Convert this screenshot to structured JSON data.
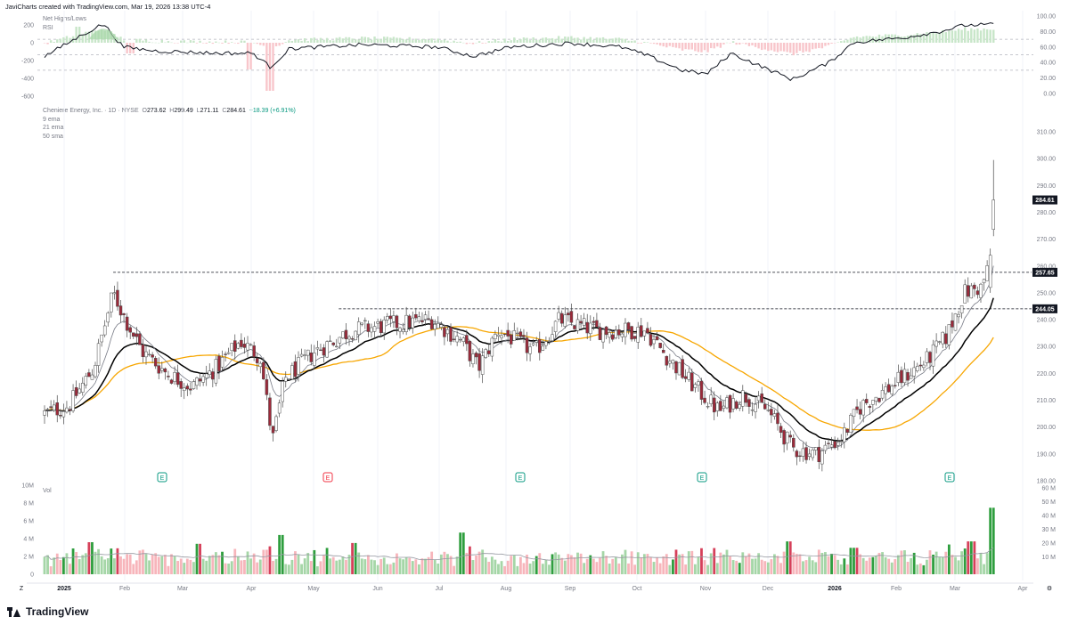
{
  "header": {
    "attribution": "JaviCharts created with TradingView.com, Mar 19, 2026 13:38 UTC-4"
  },
  "footer": {
    "brand": "TradingView"
  },
  "legend_top": {
    "line1": "Net Highs/Lows",
    "line2": "RSI"
  },
  "legend_main": {
    "symbol": "Cheniere Energy, Inc. · 1D · NYSE",
    "o_label": "O",
    "o": "273.62",
    "h_label": "H",
    "h": "299.49",
    "l_label": "L",
    "l": "271.11",
    "c_label": "C",
    "c": "284.61",
    "change": "+18.39 (+6.91%)",
    "ma1": "9 ema",
    "ma2": "21 ema",
    "ma3": "50 sma"
  },
  "legend_vol": {
    "label": "Vol"
  },
  "colors": {
    "up": "#089981",
    "down": "#f23645",
    "candle_up_fill": "#ffffff",
    "candle_down_fill": "#9c2a3a",
    "ema9": "#787b86",
    "ema21": "#000000",
    "sma50": "#f7a600",
    "vol_up": "#a5d6a7",
    "vol_down": "#f7b5bb",
    "vol_up_strong": "#2e9e3e",
    "vol_down_strong": "#d6405a",
    "rsi_line": "#131722"
  },
  "chart_data": [
    {
      "type": "candlestick",
      "name": "Cheniere Energy, Inc. · 1D · NYSE",
      "ylim": [
        180,
        310
      ],
      "y_ticks": [
        "310.00",
        "300.00",
        "290.00",
        "280.00",
        "270.00",
        "260.00",
        "250.00",
        "240.00",
        "230.00",
        "220.00",
        "210.00",
        "200.00",
        "190.00",
        "180.00"
      ],
      "price_labels": [
        {
          "value": 284.61,
          "text": "284.61"
        },
        {
          "value": 257.65,
          "text": "257.65"
        },
        {
          "value": 244.05,
          "text": "244.05"
        }
      ],
      "x_ticks": [
        "2025",
        "Feb",
        "Mar",
        "Apr",
        "May",
        "Jun",
        "Jul",
        "Aug",
        "Sep",
        "Oct",
        "Nov",
        "Dec",
        "2026",
        "Feb",
        "Mar",
        "Apr"
      ],
      "earnings_markers": [
        "E",
        "E",
        "E",
        "E",
        "E"
      ],
      "earnings_kind": [
        "up",
        "down",
        "up",
        "up",
        "up"
      ],
      "anchor_points": [
        {
          "d": 0,
          "p": 205
        },
        {
          "d": 10,
          "p": 208
        },
        {
          "d": 20,
          "p": 222
        },
        {
          "d": 28,
          "p": 250
        },
        {
          "d": 33,
          "p": 240
        },
        {
          "d": 40,
          "p": 228
        },
        {
          "d": 50,
          "p": 220
        },
        {
          "d": 60,
          "p": 215
        },
        {
          "d": 70,
          "p": 222
        },
        {
          "d": 80,
          "p": 232
        },
        {
          "d": 88,
          "p": 226
        },
        {
          "d": 93,
          "p": 195
        },
        {
          "d": 98,
          "p": 218
        },
        {
          "d": 110,
          "p": 228
        },
        {
          "d": 125,
          "p": 236
        },
        {
          "d": 140,
          "p": 238
        },
        {
          "d": 158,
          "p": 240
        },
        {
          "d": 170,
          "p": 232
        },
        {
          "d": 177,
          "p": 222
        },
        {
          "d": 185,
          "p": 236
        },
        {
          "d": 200,
          "p": 228
        },
        {
          "d": 210,
          "p": 240
        },
        {
          "d": 225,
          "p": 236
        },
        {
          "d": 245,
          "p": 236
        },
        {
          "d": 255,
          "p": 225
        },
        {
          "d": 265,
          "p": 215
        },
        {
          "d": 275,
          "p": 206
        },
        {
          "d": 285,
          "p": 212
        },
        {
          "d": 295,
          "p": 206
        },
        {
          "d": 305,
          "p": 192
        },
        {
          "d": 315,
          "p": 190
        },
        {
          "d": 325,
          "p": 196
        },
        {
          "d": 333,
          "p": 208
        },
        {
          "d": 345,
          "p": 215
        },
        {
          "d": 360,
          "p": 225
        },
        {
          "d": 368,
          "p": 234
        },
        {
          "d": 375,
          "p": 250
        },
        {
          "d": 382,
          "p": 252
        },
        {
          "d": 386,
          "p": 262
        },
        {
          "d": 387,
          "p": 284.6
        }
      ],
      "last_bar": {
        "o": 273.62,
        "h": 299.49,
        "l": 271.11,
        "c": 284.61
      },
      "resistance_lines": [
        {
          "value": 257.65,
          "from": "Jan 2025",
          "to": "Mar 2026"
        },
        {
          "value": 244.05,
          "from": "May 2025",
          "to": "Mar 2026"
        }
      ]
    },
    {
      "type": "line",
      "name": "RSI",
      "ylim": [
        0,
        100
      ],
      "y_ticks": [
        "100.00",
        "80.00",
        "60.00",
        "40.00",
        "20.00",
        "0.00"
      ],
      "levels": [
        70,
        50,
        30
      ],
      "anchor_points": [
        {
          "d": 0,
          "p": 48
        },
        {
          "d": 15,
          "p": 75
        },
        {
          "d": 24,
          "p": 90
        },
        {
          "d": 32,
          "p": 60
        },
        {
          "d": 45,
          "p": 55
        },
        {
          "d": 70,
          "p": 52
        },
        {
          "d": 85,
          "p": 52
        },
        {
          "d": 92,
          "p": 34
        },
        {
          "d": 100,
          "p": 58
        },
        {
          "d": 130,
          "p": 63
        },
        {
          "d": 160,
          "p": 60
        },
        {
          "d": 175,
          "p": 48
        },
        {
          "d": 190,
          "p": 60
        },
        {
          "d": 215,
          "p": 65
        },
        {
          "d": 235,
          "p": 60
        },
        {
          "d": 245,
          "p": 50
        },
        {
          "d": 260,
          "p": 30
        },
        {
          "d": 270,
          "p": 25
        },
        {
          "d": 280,
          "p": 52
        },
        {
          "d": 290,
          "p": 38
        },
        {
          "d": 305,
          "p": 18
        },
        {
          "d": 320,
          "p": 40
        },
        {
          "d": 330,
          "p": 66
        },
        {
          "d": 350,
          "p": 72
        },
        {
          "d": 365,
          "p": 80
        },
        {
          "d": 375,
          "p": 88
        },
        {
          "d": 387,
          "p": 89
        }
      ]
    },
    {
      "type": "bar",
      "name": "Net Highs/Lows",
      "ylim": [
        -600,
        200
      ],
      "y_ticks": [
        "200",
        "0",
        "-200",
        "-400",
        "-600"
      ],
      "spikes": [
        {
          "d": 92,
          "v": -540
        },
        {
          "d": 84,
          "v": -300
        },
        {
          "d": 14,
          "v": 180
        },
        {
          "d": 35,
          "v": -120
        }
      ]
    },
    {
      "type": "bar",
      "name": "Vol",
      "left_ticks": [
        "10M",
        "8 M",
        "6 M",
        "4 M",
        "2 M",
        "0"
      ],
      "right_ticks": [
        "60 M",
        "50 M",
        "40 M",
        "30 M",
        "20 M",
        "10 M"
      ],
      "ylim_millions": [
        0,
        10
      ],
      "spikes_millions": [
        {
          "d": 387,
          "v": 8.3
        },
        {
          "d": 170,
          "v": 5.2
        },
        {
          "d": 126,
          "v": 3.9
        },
        {
          "d": 96,
          "v": 4.9
        },
        {
          "d": 63,
          "v": 3.8
        },
        {
          "d": 303,
          "v": 4.1
        },
        {
          "d": 378,
          "v": 4.1
        },
        {
          "d": 330,
          "v": 3.3
        },
        {
          "d": 19,
          "v": 4.0
        }
      ]
    }
  ]
}
